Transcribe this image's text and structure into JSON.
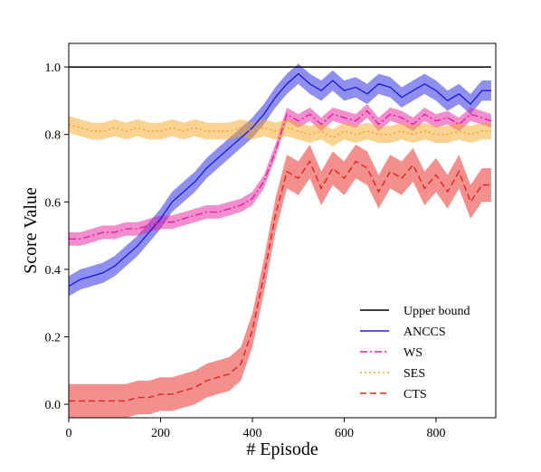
{
  "chart_data": {
    "type": "line",
    "xlabel": "# Episode",
    "ylabel": "Score Value",
    "xlim": [
      0,
      930
    ],
    "ylim": [
      -0.04,
      1.07
    ],
    "xticks": [
      0,
      200,
      400,
      600,
      800
    ],
    "yticks": [
      0.0,
      0.2,
      0.4,
      0.6,
      0.8,
      1.0
    ],
    "ytick_labels": [
      "0.0",
      "0.2",
      "0.4",
      "0.6",
      "0.8",
      "1.0"
    ],
    "grid": false,
    "legend_position": "lower-right",
    "x": [
      0,
      25,
      50,
      75,
      100,
      125,
      150,
      175,
      200,
      225,
      250,
      275,
      300,
      325,
      350,
      375,
      400,
      425,
      450,
      475,
      500,
      525,
      550,
      575,
      600,
      625,
      650,
      675,
      700,
      725,
      750,
      775,
      800,
      825,
      850,
      875,
      900,
      920
    ],
    "series": [
      {
        "name": "Upper bound",
        "color": "#000000",
        "style": "solid",
        "values": [
          1.0,
          1.0,
          1.0,
          1.0,
          1.0,
          1.0,
          1.0,
          1.0,
          1.0,
          1.0,
          1.0,
          1.0,
          1.0,
          1.0,
          1.0,
          1.0,
          1.0,
          1.0,
          1.0,
          1.0,
          1.0,
          1.0,
          1.0,
          1.0,
          1.0,
          1.0,
          1.0,
          1.0,
          1.0,
          1.0,
          1.0,
          1.0,
          1.0,
          1.0,
          1.0,
          1.0,
          1.0,
          1.0
        ],
        "band": 0
      },
      {
        "name": "ANCCS",
        "color": "#1f1fe0",
        "style": "solid",
        "values": [
          0.35,
          0.37,
          0.38,
          0.39,
          0.41,
          0.44,
          0.47,
          0.51,
          0.55,
          0.6,
          0.63,
          0.66,
          0.7,
          0.73,
          0.76,
          0.79,
          0.82,
          0.86,
          0.91,
          0.95,
          0.98,
          0.95,
          0.93,
          0.96,
          0.93,
          0.94,
          0.92,
          0.95,
          0.94,
          0.91,
          0.93,
          0.95,
          0.93,
          0.9,
          0.92,
          0.89,
          0.93,
          0.93
        ],
        "band": 0.03
      },
      {
        "name": "WS",
        "color": "#e61e9b",
        "style": "dashdot",
        "values": [
          0.49,
          0.49,
          0.5,
          0.51,
          0.51,
          0.52,
          0.52,
          0.53,
          0.54,
          0.54,
          0.55,
          0.56,
          0.57,
          0.57,
          0.58,
          0.59,
          0.61,
          0.66,
          0.75,
          0.86,
          0.84,
          0.86,
          0.83,
          0.86,
          0.85,
          0.84,
          0.87,
          0.83,
          0.86,
          0.85,
          0.83,
          0.86,
          0.84,
          0.85,
          0.83,
          0.86,
          0.85,
          0.84
        ],
        "band": 0.02
      },
      {
        "name": "SES",
        "color": "#f5a623",
        "style": "dotted",
        "values": [
          0.83,
          0.82,
          0.81,
          0.81,
          0.82,
          0.81,
          0.82,
          0.81,
          0.81,
          0.82,
          0.81,
          0.82,
          0.81,
          0.81,
          0.81,
          0.82,
          0.81,
          0.82,
          0.81,
          0.82,
          0.81,
          0.8,
          0.81,
          0.79,
          0.81,
          0.8,
          0.81,
          0.8,
          0.8,
          0.81,
          0.8,
          0.81,
          0.8,
          0.8,
          0.81,
          0.8,
          0.81,
          0.81
        ],
        "band": 0.025
      },
      {
        "name": "CTS",
        "color": "#e8211d",
        "style": "dashed",
        "values": [
          0.01,
          0.01,
          0.01,
          0.01,
          0.01,
          0.01,
          0.02,
          0.02,
          0.03,
          0.03,
          0.04,
          0.05,
          0.07,
          0.08,
          0.09,
          0.12,
          0.22,
          0.38,
          0.56,
          0.69,
          0.67,
          0.72,
          0.64,
          0.7,
          0.67,
          0.72,
          0.7,
          0.63,
          0.69,
          0.67,
          0.71,
          0.64,
          0.68,
          0.63,
          0.69,
          0.6,
          0.65,
          0.65
        ],
        "band": 0.05
      }
    ]
  }
}
